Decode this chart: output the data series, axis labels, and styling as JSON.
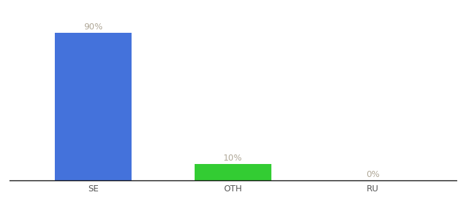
{
  "categories": [
    "SE",
    "OTH",
    "RU"
  ],
  "values": [
    90,
    10,
    0
  ],
  "bar_colors": [
    "#4472db",
    "#33cc33",
    "#4472db"
  ],
  "labels": [
    "90%",
    "10%",
    "0%"
  ],
  "ylim": [
    0,
    100
  ],
  "label_color": "#b0a898",
  "xlabel_color": "#555555",
  "background_color": "#ffffff",
  "bar_width": 0.55,
  "label_fontsize": 9,
  "xlabel_fontsize": 9,
  "spine_color": "#111111"
}
